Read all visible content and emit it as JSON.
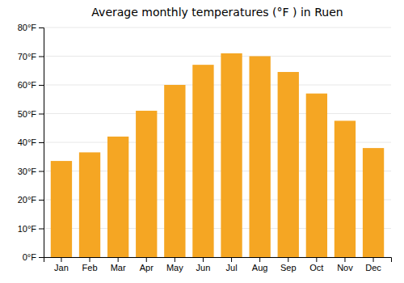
{
  "chart_data": {
    "type": "bar",
    "title": "Average monthly temperatures (°F ) in Ruen",
    "categories": [
      "Jan",
      "Feb",
      "Mar",
      "Apr",
      "May",
      "Jun",
      "Jul",
      "Aug",
      "Sep",
      "Oct",
      "Nov",
      "Dec"
    ],
    "values": [
      33.5,
      36.5,
      42.0,
      51.0,
      60.0,
      67.0,
      71.0,
      70.0,
      64.5,
      57.0,
      47.5,
      38.0
    ],
    "color": "#F5A623",
    "ylim": [
      0,
      80
    ],
    "yticks": [
      {
        "value": 0,
        "label": "0°F"
      },
      {
        "value": 10,
        "label": "10°F"
      },
      {
        "value": 20,
        "label": "20°F"
      },
      {
        "value": 30,
        "label": "30°F"
      },
      {
        "value": 40,
        "label": "40°F"
      },
      {
        "value": 50,
        "label": "50°F"
      },
      {
        "value": 60,
        "label": "60°F"
      },
      {
        "value": 70,
        "label": "70°F"
      },
      {
        "value": 80,
        "label": "80°F"
      }
    ],
    "grid": true
  }
}
